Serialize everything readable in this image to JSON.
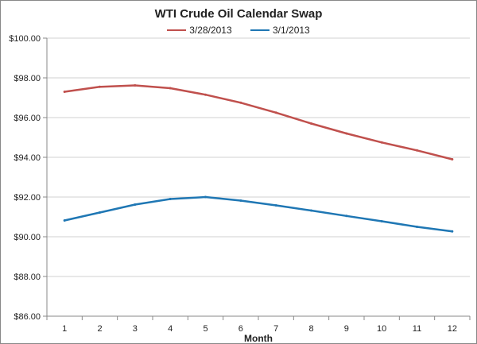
{
  "chart_data": {
    "type": "line",
    "title": "WTI Crude Oil Calendar Swap",
    "xlabel": "Month",
    "ylabel": "",
    "x": [
      1,
      2,
      3,
      4,
      5,
      6,
      7,
      8,
      9,
      10,
      11,
      12
    ],
    "ylim": [
      86,
      100
    ],
    "yticks": [
      "$86.00",
      "$88.00",
      "$90.00",
      "$92.00",
      "$94.00",
      "$96.00",
      "$98.00",
      "$100.00"
    ],
    "grid": true,
    "legend_position": "top",
    "series": [
      {
        "name": "3/28/2013",
        "color": "#c0504d",
        "values": [
          97.3,
          97.55,
          97.62,
          97.48,
          97.15,
          96.75,
          96.25,
          95.7,
          95.2,
          94.75,
          94.35,
          93.9
        ]
      },
      {
        "name": "3/1/2013",
        "color": "#1f77b4",
        "values": [
          90.82,
          91.22,
          91.62,
          91.9,
          92.0,
          91.82,
          91.58,
          91.32,
          91.05,
          90.78,
          90.5,
          90.27
        ]
      }
    ]
  }
}
